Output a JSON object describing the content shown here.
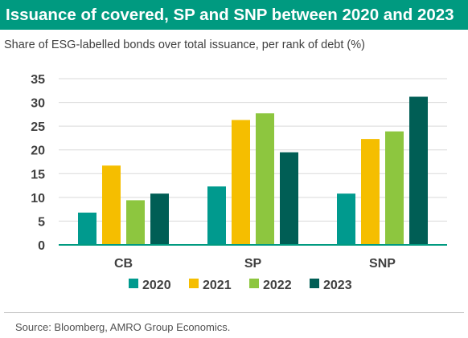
{
  "title": "Issuance of covered, SP and SNP between 2020 and 2023",
  "subtitle": "Share of ESG-labelled bonds over total issuance, per rank of debt (%)",
  "source": "Source: Bloomberg, AMRO Group Economics.",
  "colors": {
    "title_bar": "#009a80",
    "axis": "#009a80",
    "gridline": "#d9d9d9",
    "divider": "#bdbdbd"
  },
  "chart_data": {
    "type": "bar",
    "categories": [
      "CB",
      "SP",
      "SNP"
    ],
    "series": [
      {
        "name": "2020",
        "color": "#009a8e",
        "values": [
          6.8,
          12.3,
          10.8
        ]
      },
      {
        "name": "2021",
        "color": "#f5be00",
        "values": [
          16.7,
          26.3,
          22.3
        ]
      },
      {
        "name": "2022",
        "color": "#8dc63f",
        "values": [
          9.4,
          27.7,
          23.9
        ]
      },
      {
        "name": "2023",
        "color": "#005e55",
        "values": [
          10.8,
          19.5,
          31.2
        ]
      }
    ],
    "yticks": [
      "0",
      "5",
      "10",
      "15",
      "20",
      "25",
      "30",
      "35"
    ],
    "ylim": [
      0,
      35
    ],
    "grid": true,
    "legend_position": "bottom"
  }
}
